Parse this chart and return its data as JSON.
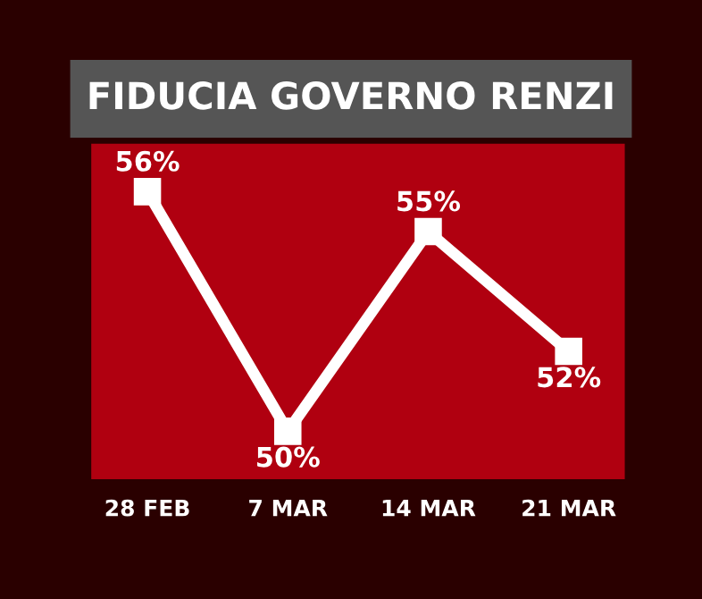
{
  "chart_data": {
    "type": "line",
    "title": "FIDUCIA GOVERNO RENZI",
    "categories": [
      "28 FEB",
      "7 MAR",
      "14 MAR",
      "21 MAR"
    ],
    "series": [
      {
        "color": "#ffffff",
        "values": [
          56,
          50,
          55,
          52
        ],
        "value_labels": [
          "56%",
          "50%",
          "55%",
          "52%"
        ]
      }
    ],
    "tick_labels": "x",
    "grid": false,
    "legend": false,
    "marker": "square",
    "line_style": "solid"
  }
}
